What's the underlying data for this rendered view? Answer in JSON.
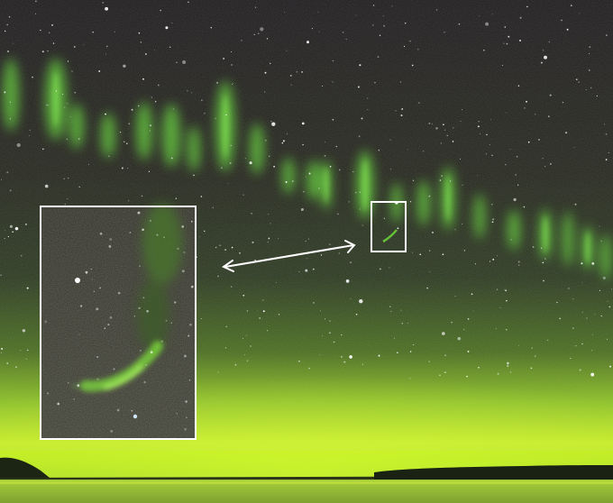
{
  "scene": {
    "description_tags": [
      "night-sky",
      "aurora",
      "stars",
      "shoreline",
      "inset-zoom",
      "double-arrow"
    ],
    "colors": {
      "sky_top": "#1f1c1e",
      "sky_mid": "#2b2f27",
      "aurora_green": "#6fe03a",
      "horizon_glow": "#c8f020",
      "water": "#9fc43a",
      "land": "#1a1f16",
      "frame": "#ffffff",
      "star": "#ffffff"
    }
  }
}
